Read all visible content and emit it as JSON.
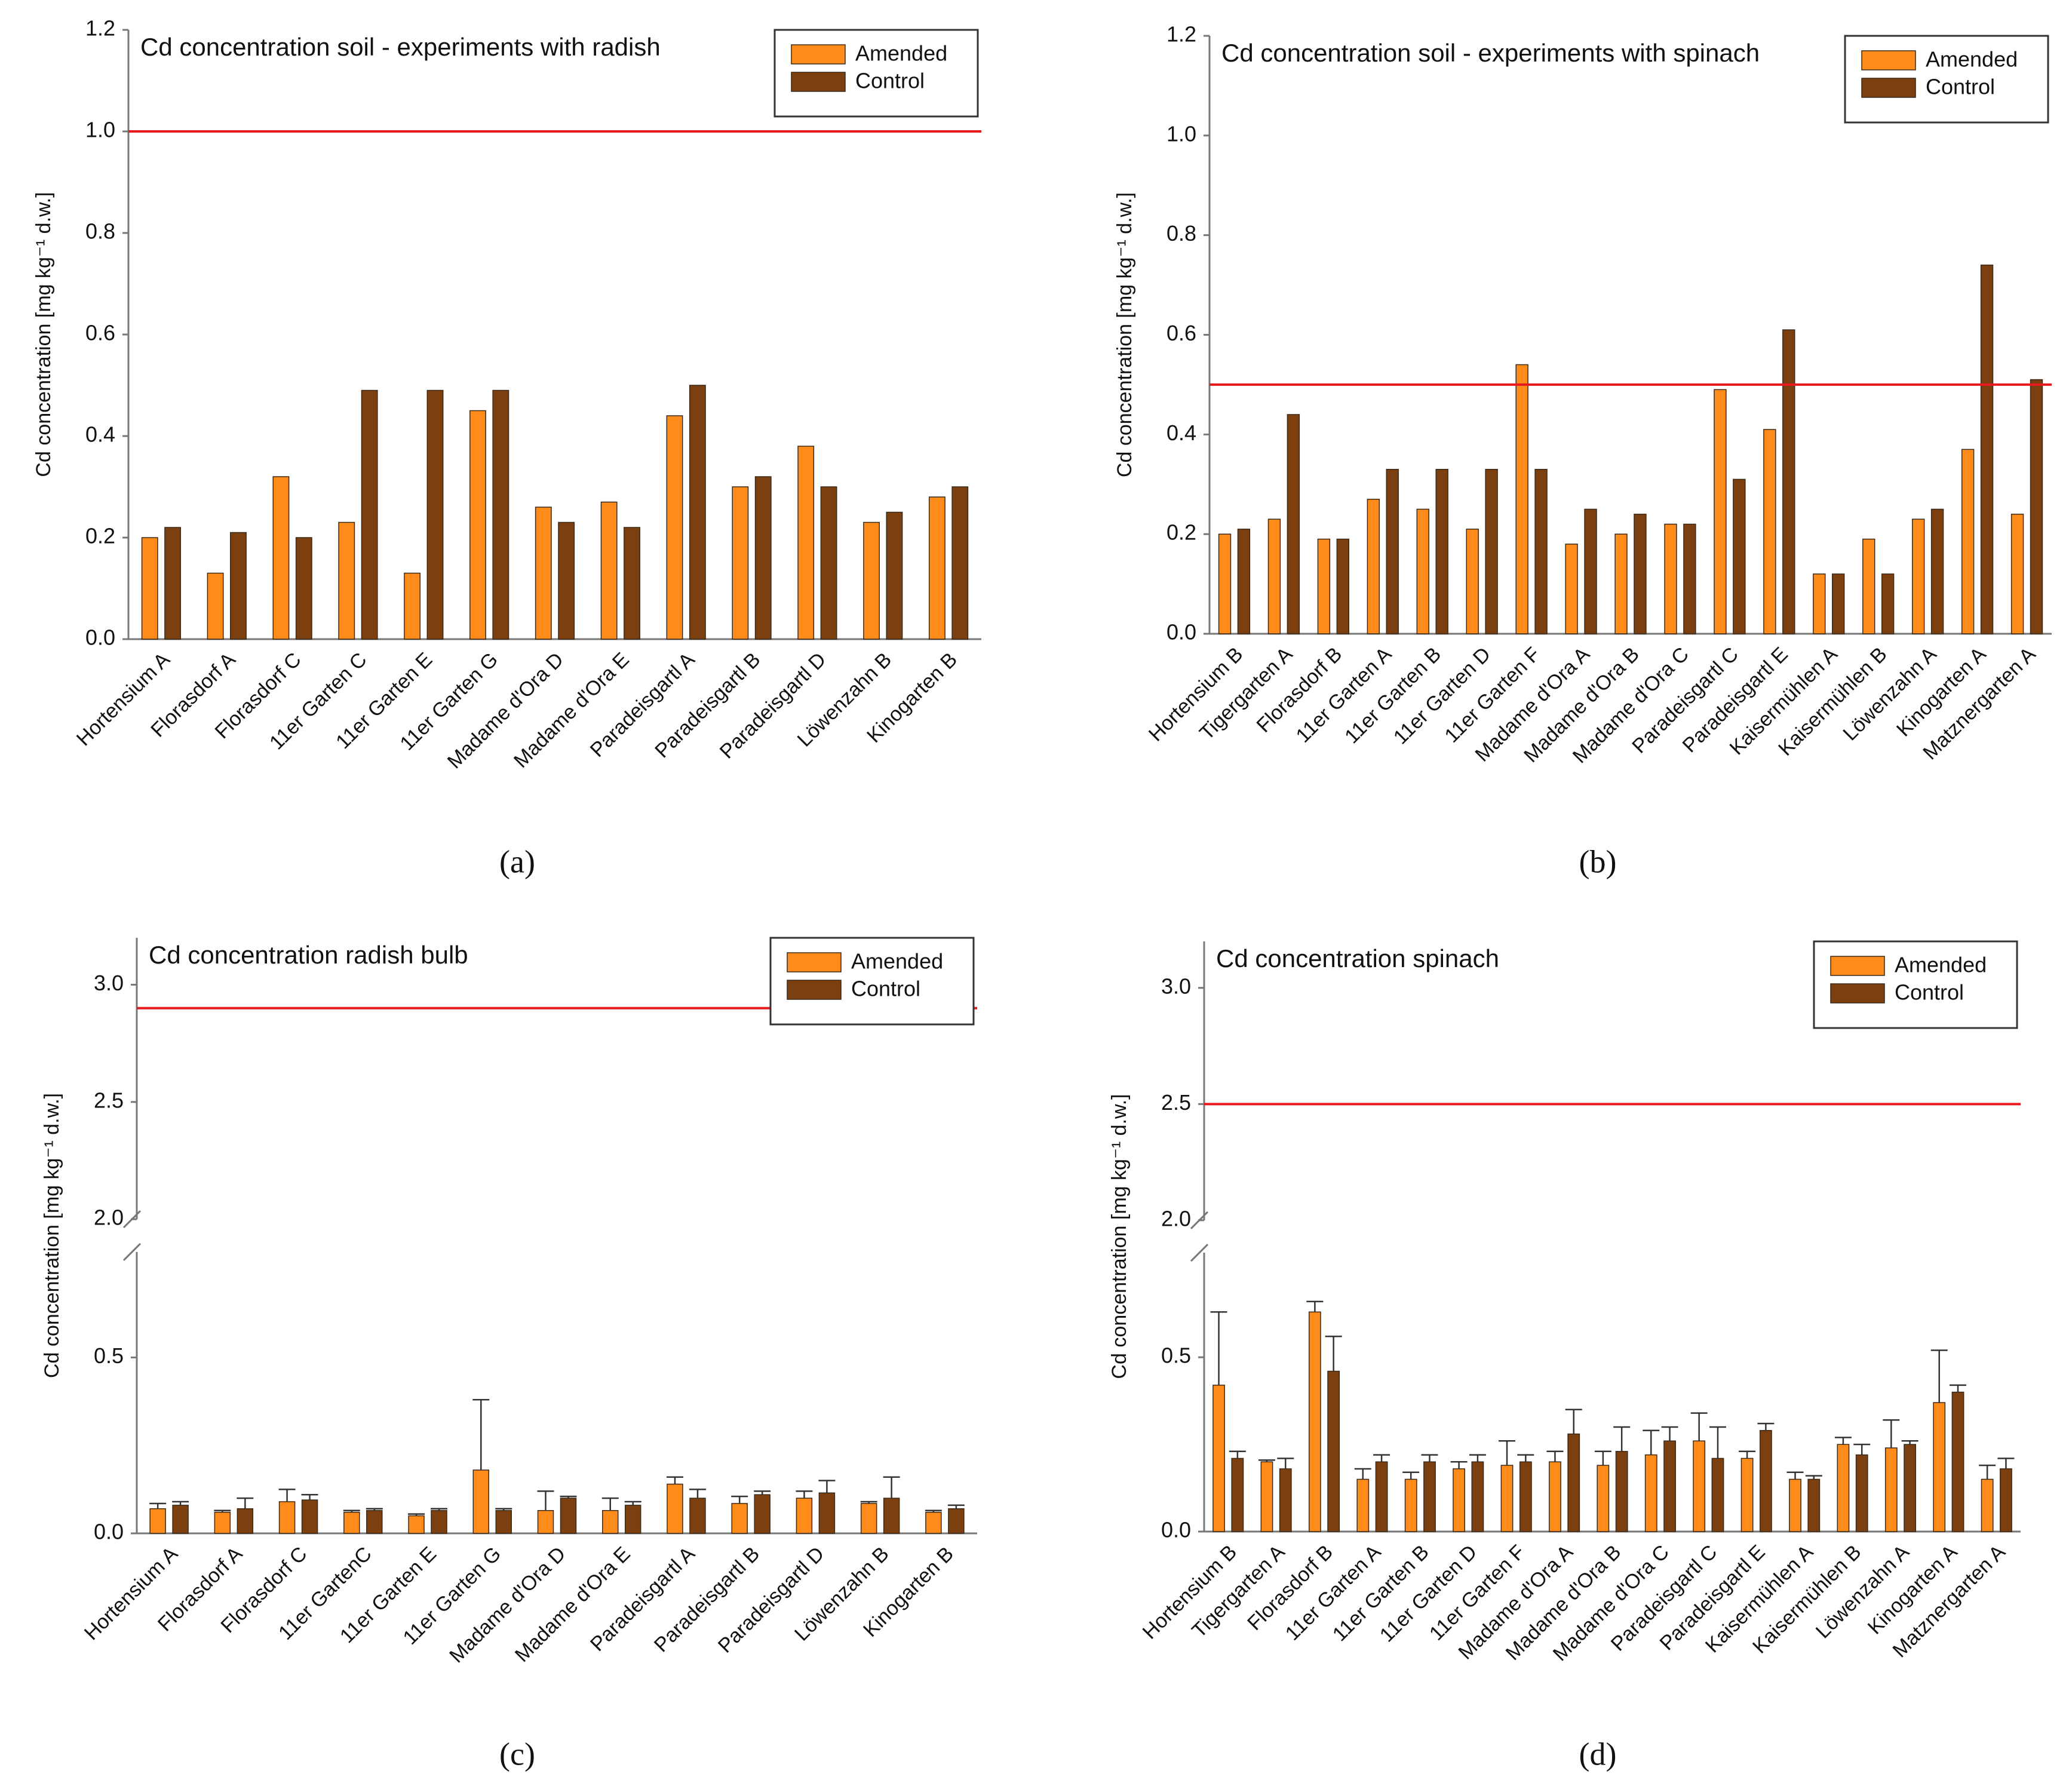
{
  "chart_data": [
    {
      "type": "bar",
      "title": "Cd concentration soil - experiments with radish",
      "y_label": "Cd concentration [mg kg⁻¹ d.w.]",
      "panel_label": "(a)",
      "categories": [
        "Hortensium A",
        "Florasdorf A",
        "Florasdorf C",
        "11er Garten C",
        "11er Garten E",
        "11er Garten G",
        "Madame d'Ora D",
        "Madame d'Ora E",
        "Paradeisgartl A",
        "Paradeisgartl B",
        "Paradeisgartl D",
        "Löwenzahn B",
        "Kinogarten B"
      ],
      "series": [
        {
          "name": "Amended",
          "color": "#ff8c1a",
          "values": [
            0.2,
            0.13,
            0.32,
            0.23,
            0.13,
            0.45,
            0.26,
            0.27,
            0.44,
            0.3,
            0.38,
            0.23,
            0.28
          ]
        },
        {
          "name": "Control",
          "color": "#7b3f10",
          "values": [
            0.22,
            0.21,
            0.2,
            0.49,
            0.49,
            0.49,
            0.23,
            0.22,
            0.5,
            0.32,
            0.3,
            0.25,
            0.3
          ]
        }
      ],
      "ylim": [
        0,
        1.2
      ],
      "yticks": [
        {
          "value": 0,
          "label": "0.0"
        },
        0.2,
        0.4,
        0.6,
        0.8,
        {
          "value": 1,
          "label": "1.0"
        },
        1.2
      ],
      "reference_line": {
        "value": 1.0,
        "color": "#e8191c"
      },
      "legend": "upper right",
      "grid": false
    },
    {
      "type": "bar",
      "title": "Cd concentration soil - experiments with spinach",
      "y_label": "Cd concentration [mg kg⁻¹ d.w.]",
      "panel_label": "(b)",
      "categories": [
        "Hortensium B",
        "Tigergarten A",
        "Florasdorf B",
        "11er Garten A",
        "11er Garten B",
        "11er Garten D",
        "11er Garten F",
        "Madame d'Ora A",
        "Madame d'Ora B",
        "Madame d'Ora C",
        "Paradeisgartl C",
        "Paradeisgartl E",
        "Kaisermühlen A",
        "Kaisermühlen B",
        "Löwenzahn A",
        "Kinogarten A",
        "Matznergarten A"
      ],
      "series": [
        {
          "name": "Amended",
          "color": "#ff8c1a",
          "values": [
            0.2,
            0.23,
            0.19,
            0.27,
            0.25,
            0.21,
            0.54,
            0.18,
            0.2,
            0.22,
            0.49,
            0.41,
            0.12,
            0.19,
            0.23,
            0.37,
            0.24
          ]
        },
        {
          "name": "Control",
          "color": "#7b3f10",
          "values": [
            0.21,
            0.44,
            0.19,
            0.33,
            0.33,
            0.33,
            0.33,
            0.25,
            0.24,
            0.22,
            0.31,
            0.61,
            0.12,
            0.12,
            0.25,
            0.74,
            0.51
          ]
        }
      ],
      "ylim": [
        0,
        1.2
      ],
      "yticks": [
        {
          "value": 0,
          "label": "0.0"
        },
        0.2,
        0.4,
        0.6,
        0.8,
        {
          "value": 1,
          "label": "1.0"
        },
        1.2
      ],
      "reference_line": {
        "value": 0.5,
        "color": "#e8191c"
      },
      "legend": "upper right",
      "grid": false
    },
    {
      "type": "bar",
      "title": "Cd concentration radish bulb",
      "y_label": "Cd concentration [mg kg⁻¹ d.w.]",
      "panel_label": "(c)",
      "categories": [
        "Hortensium A",
        "Florasdorf A",
        "Florasdorf C",
        "11er GartenC",
        "11er Garten E",
        "11er Garten G",
        "Madame d'Ora D",
        "Madame d'Ora E",
        "Paradeisgartl A",
        "Paradeisgartl B",
        "Paradeisgartl D",
        "Löwenzahn B",
        "Kinogarten B"
      ],
      "series": [
        {
          "name": "Amended",
          "color": "#ff8c1a",
          "values": [
            0.07,
            0.06,
            0.09,
            0.06,
            0.05,
            0.18,
            0.065,
            0.065,
            0.14,
            0.085,
            0.1,
            0.085,
            0.06
          ],
          "errors": [
            0.015,
            0.005,
            0.035,
            0.005,
            0.005,
            0.2,
            0.055,
            0.035,
            0.02,
            0.02,
            0.02,
            0.005,
            0.005
          ]
        },
        {
          "name": "Control",
          "color": "#7b3f10",
          "values": [
            0.08,
            0.07,
            0.095,
            0.065,
            0.065,
            0.065,
            0.1,
            0.08,
            0.1,
            0.11,
            0.115,
            0.1,
            0.07
          ],
          "errors": [
            0.01,
            0.03,
            0.015,
            0.005,
            0.005,
            0.005,
            0.005,
            0.01,
            0.025,
            0.01,
            0.035,
            0.06,
            0.01
          ]
        }
      ],
      "ylim": [
        0,
        3.2
      ],
      "ybreak": [
        0.8,
        2.0
      ],
      "yticks": [
        {
          "value": 0,
          "label": "0.0"
        },
        0.5,
        {
          "value": 2,
          "label": "2.0"
        },
        2.5,
        {
          "value": 3,
          "label": "3.0"
        }
      ],
      "reference_line": {
        "value": 2.9,
        "color": "#e8191c"
      },
      "legend": "upper right",
      "grid": false
    },
    {
      "type": "bar",
      "title": "Cd concentration spinach",
      "y_label": "Cd concentration [mg kg⁻¹ d.w.]",
      "panel_label": "(d)",
      "categories": [
        "Hortensium B",
        "Tigergarten A",
        "Florasdorf B",
        "11er Garten A",
        "11er Garten B",
        "11er Garten D",
        "11er Garten F",
        "Madame d'Ora A",
        "Madame d'Ora B",
        "Madame d'Ora C",
        "Paradeisgartl C",
        "Paradeisgartl E",
        "Kaisermühlen A",
        "Kaisermühlen B",
        "Löwenzahn A",
        "Kinogarten A",
        "Matznergarten A"
      ],
      "series": [
        {
          "name": "Amended",
          "color": "#ff8c1a",
          "values": [
            0.42,
            0.2,
            0.63,
            0.15,
            0.15,
            0.18,
            0.19,
            0.2,
            0.19,
            0.22,
            0.26,
            0.21,
            0.15,
            0.25,
            0.24,
            0.37,
            0.15
          ],
          "errors": [
            0.21,
            0.005,
            0.03,
            0.03,
            0.02,
            0.02,
            0.07,
            0.03,
            0.04,
            0.07,
            0.08,
            0.02,
            0.02,
            0.02,
            0.08,
            0.15,
            0.04
          ]
        },
        {
          "name": "Control",
          "color": "#7b3f10",
          "values": [
            0.21,
            0.18,
            0.46,
            0.2,
            0.2,
            0.2,
            0.2,
            0.28,
            0.23,
            0.26,
            0.21,
            0.29,
            0.15,
            0.22,
            0.25,
            0.4,
            0.18
          ],
          "errors": [
            0.02,
            0.03,
            0.1,
            0.02,
            0.02,
            0.02,
            0.02,
            0.07,
            0.07,
            0.04,
            0.09,
            0.02,
            0.01,
            0.03,
            0.01,
            0.02,
            0.03
          ]
        }
      ],
      "ylim": [
        0,
        3.2
      ],
      "ybreak": [
        0.8,
        2.0
      ],
      "yticks": [
        {
          "value": 0,
          "label": "0.0"
        },
        0.5,
        {
          "value": 2,
          "label": "2.0"
        },
        2.5,
        {
          "value": 3,
          "label": "3.0"
        }
      ],
      "reference_line": {
        "value": 2.5,
        "color": "#e8191c"
      },
      "legend": "upper right",
      "grid": false
    }
  ]
}
